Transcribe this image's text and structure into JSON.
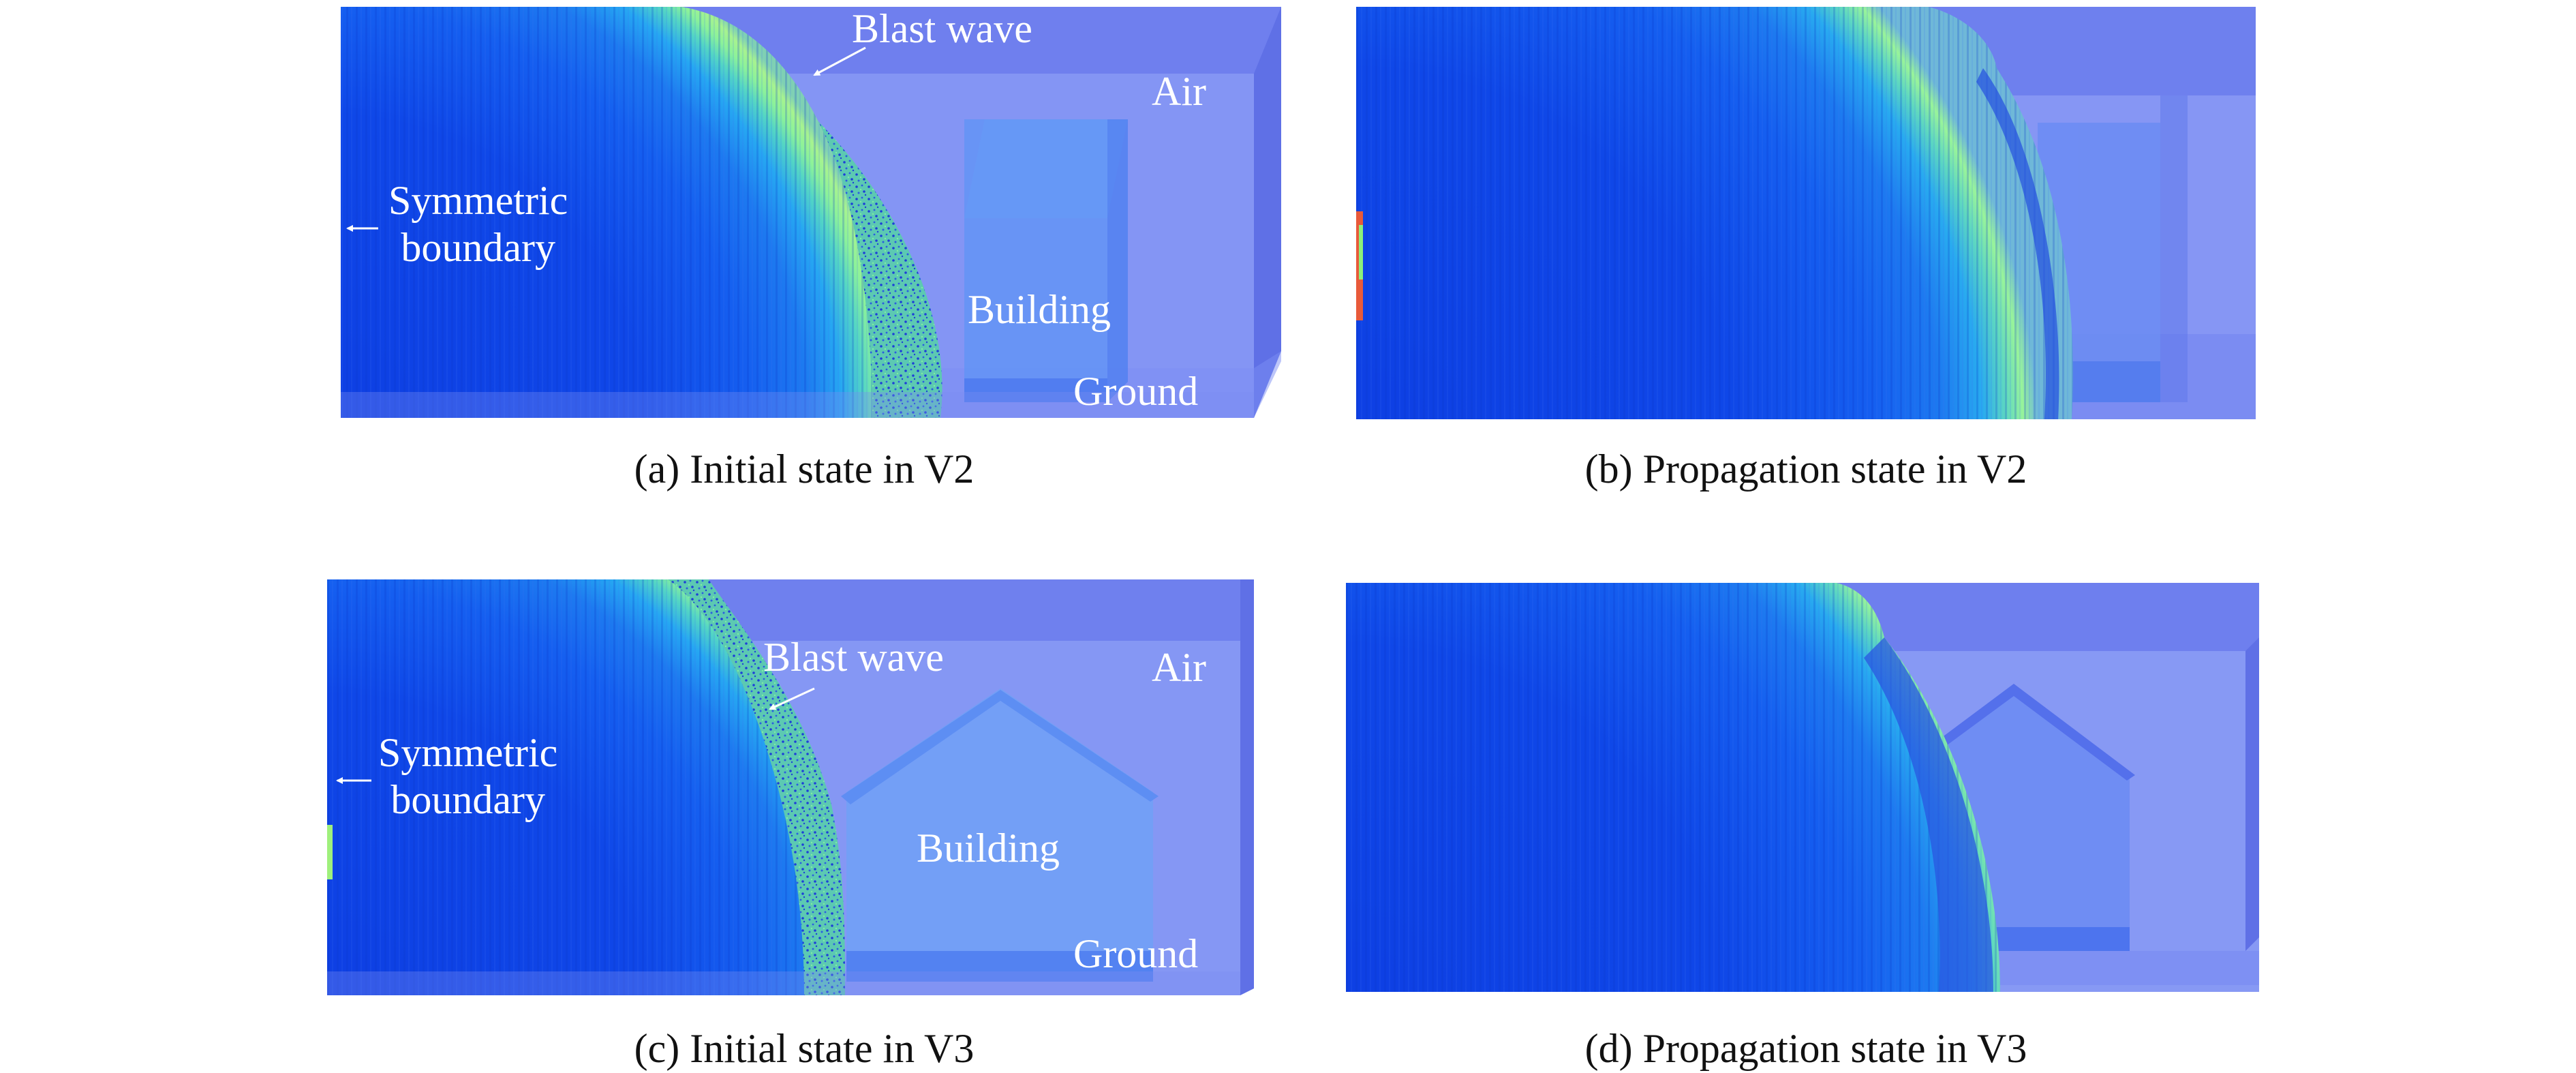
{
  "panels": [
    {
      "caption": "(a) Initial state in V2",
      "labels": {
        "blast_wave": "Blast wave",
        "air": "Air",
        "symmetric_boundary": "Symmetric\nboundary",
        "building": "Building",
        "ground": "Ground"
      }
    },
    {
      "caption": "(b) Propagation state in V2"
    },
    {
      "caption": "(c) Initial state in V3",
      "labels": {
        "blast_wave": "Blast wave",
        "air": "Air",
        "symmetric_boundary": "Symmetric\nboundary",
        "building": "Building",
        "ground": "Ground"
      }
    },
    {
      "caption": "(d) Propagation state in V3"
    }
  ],
  "colors": {
    "domain_air": "#7f8ff3",
    "domain_top": "#6f7fee",
    "domain_side": "#5f70e6",
    "wave_dark_blue": "#0f45e6",
    "wave_mid_blue": "#1a66f0",
    "wave_cyan": "#29b0f0",
    "wave_green": "#7cf09c",
    "building_blue": "#5f94f5",
    "label_text": "#ffffff",
    "caption_text": "#111111"
  }
}
